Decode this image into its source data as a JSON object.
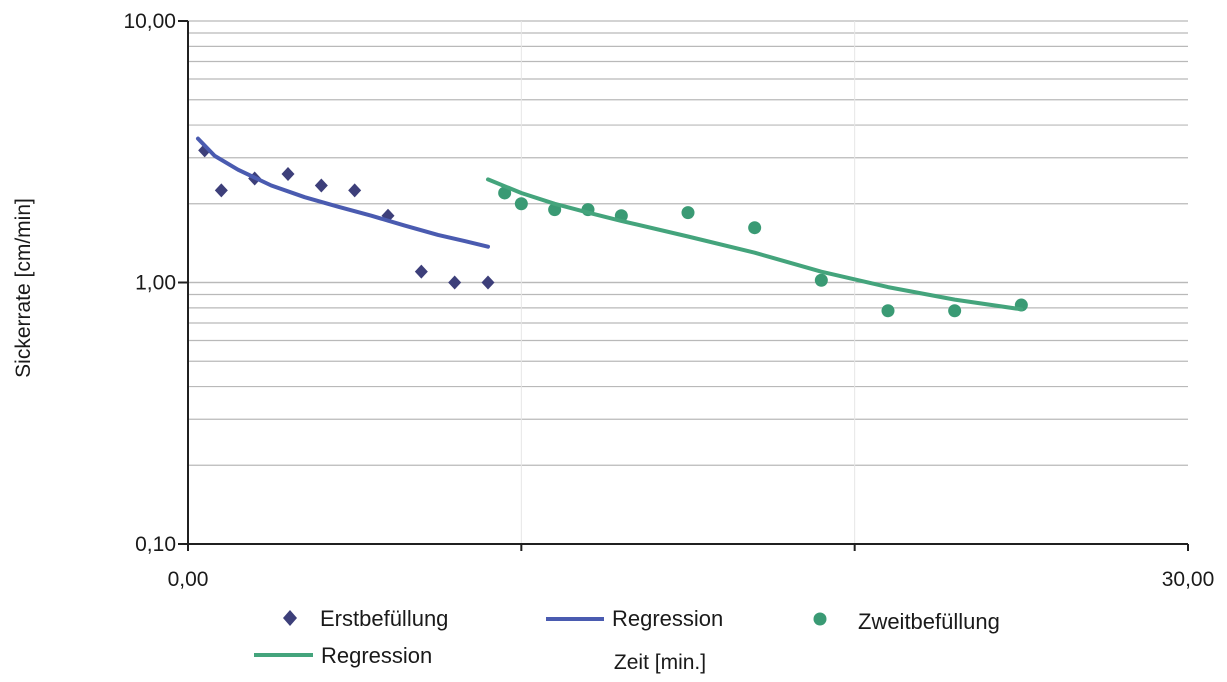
{
  "chart_data": {
    "type": "scatter",
    "xlabel": "Zeit [min.]",
    "ylabel": "Sickerrate [cm/min]",
    "xlim": [
      0,
      30
    ],
    "ylim": [
      0.1,
      10
    ],
    "y_scale": "log",
    "x_tick_labels": [
      {
        "value": 0,
        "label": "0,00"
      },
      {
        "value": 30,
        "label": "30,00"
      }
    ],
    "x_minor_ticks": [
      10,
      20
    ],
    "y_tick_labels": [
      {
        "value": 0.1,
        "label": "0,10"
      },
      {
        "value": 1,
        "label": "1,00"
      },
      {
        "value": 10,
        "label": "10,00"
      }
    ],
    "grid": true,
    "legend_position": "bottom",
    "colors": {
      "erst": "#3d3f7a",
      "erst_regression": "#4a5bb0",
      "zweit": "#3a9a74",
      "zweit_regression": "#44a47c",
      "axis": "#202020",
      "grid": "#b9b9b9",
      "vgrid": "#e6e6e6"
    },
    "series": [
      {
        "name": "Erstbefüllung",
        "kind": "points",
        "marker": "diamond",
        "points": [
          [
            0.5,
            3.2
          ],
          [
            1.0,
            2.25
          ],
          [
            2.0,
            2.5
          ],
          [
            3.0,
            2.6
          ],
          [
            4.0,
            2.35
          ],
          [
            5.0,
            2.25
          ],
          [
            6.0,
            1.8
          ],
          [
            7.0,
            1.1
          ],
          [
            8.0,
            1.0
          ],
          [
            9.0,
            1.0
          ]
        ]
      },
      {
        "name": "Regression",
        "kind": "line",
        "color_key": "erst_regression",
        "points": [
          [
            0.3,
            3.55
          ],
          [
            0.8,
            3.05
          ],
          [
            1.5,
            2.7
          ],
          [
            2.5,
            2.35
          ],
          [
            3.5,
            2.12
          ],
          [
            4.5,
            1.95
          ],
          [
            5.5,
            1.8
          ],
          [
            6.5,
            1.65
          ],
          [
            7.5,
            1.52
          ],
          [
            8.3,
            1.44
          ],
          [
            9.0,
            1.37
          ]
        ]
      },
      {
        "name": "Zweitbefüllung",
        "kind": "points",
        "marker": "circle",
        "points": [
          [
            9.5,
            2.2
          ],
          [
            10.0,
            2.0
          ],
          [
            11.0,
            1.9
          ],
          [
            12.0,
            1.9
          ],
          [
            13.0,
            1.8
          ],
          [
            15.0,
            1.85
          ],
          [
            17.0,
            1.62
          ],
          [
            19.0,
            1.02
          ],
          [
            21.0,
            0.78
          ],
          [
            23.0,
            0.78
          ],
          [
            25.0,
            0.82
          ]
        ]
      },
      {
        "name": "Regression",
        "kind": "line",
        "color_key": "zweit_regression",
        "points": [
          [
            9.0,
            2.48
          ],
          [
            10.0,
            2.2
          ],
          [
            11.0,
            2.0
          ],
          [
            12.0,
            1.85
          ],
          [
            13.0,
            1.72
          ],
          [
            15.0,
            1.5
          ],
          [
            17.0,
            1.3
          ],
          [
            19.0,
            1.1
          ],
          [
            21.0,
            0.96
          ],
          [
            23.0,
            0.86
          ],
          [
            25.0,
            0.79
          ]
        ]
      }
    ],
    "legend": [
      {
        "label": "Erstbefüllung",
        "marker": "diamond",
        "color_key": "erst"
      },
      {
        "label": "Regression",
        "marker": "line",
        "color_key": "erst_regression"
      },
      {
        "label": "Zweitbefüllung",
        "marker": "circle",
        "color_key": "zweit"
      },
      {
        "label": "Regression",
        "marker": "line",
        "color_key": "zweit_regression"
      }
    ]
  }
}
